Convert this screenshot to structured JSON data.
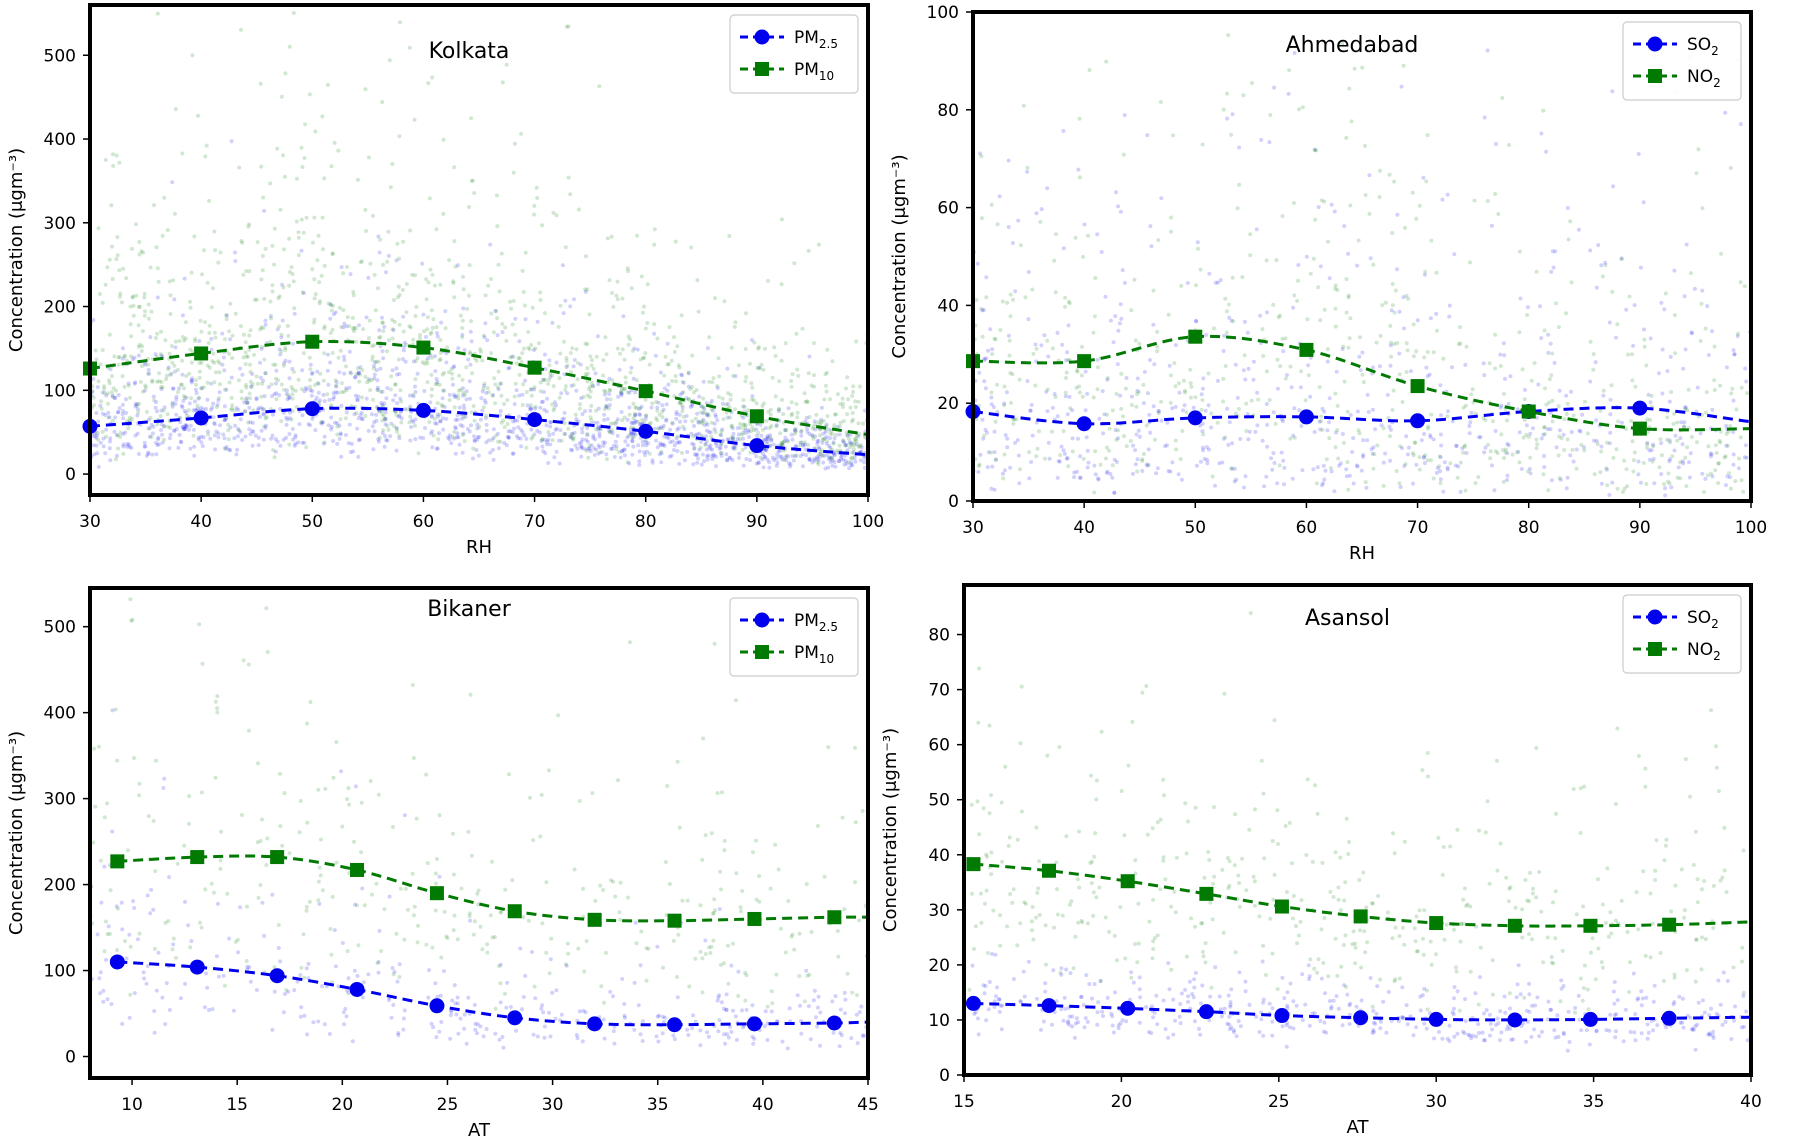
{
  "colors": {
    "so2_pm25": "#0000ee",
    "no2_pm10": "#007a00"
  },
  "chart_data": [
    {
      "type": "scatter",
      "title": "Kolkata",
      "xlabel": "RH",
      "ylabel": "Concentration (μgm⁻³)",
      "xlim": [
        30,
        100
      ],
      "ylim": [
        -25,
        560
      ],
      "xticks": [
        30,
        40,
        50,
        60,
        70,
        80,
        90,
        100
      ],
      "yticks": [
        0,
        100,
        200,
        300,
        400,
        500
      ],
      "legend_position": "top-right",
      "series": [
        {
          "name": "PM",
          "subscript": "2.5",
          "marker": "circle",
          "x": [
            30,
            40,
            50,
            60,
            70,
            80,
            90,
            100
          ],
          "y": [
            57,
            67,
            78,
            76,
            65,
            51,
            34,
            23
          ]
        },
        {
          "name": "PM",
          "subscript": "10",
          "marker": "square",
          "x": [
            30,
            40,
            50,
            60,
            70,
            80,
            90,
            100
          ],
          "y": [
            126,
            144,
            158,
            151,
            127,
            99,
            69,
            47
          ]
        }
      ]
    },
    {
      "type": "scatter",
      "title": "Ahmedabad",
      "xlabel": "RH",
      "ylabel": "Concentration (μgm⁻³)",
      "xlim": [
        30,
        100
      ],
      "ylim": [
        0,
        100
      ],
      "xticks": [
        30,
        40,
        50,
        60,
        70,
        80,
        90,
        100
      ],
      "yticks": [
        0,
        20,
        40,
        60,
        80,
        100
      ],
      "legend_position": "top-right",
      "series": [
        {
          "name": "SO",
          "subscript": "2",
          "marker": "circle",
          "x": [
            30,
            40,
            50,
            60,
            70,
            80,
            90,
            100
          ],
          "y": [
            18.3,
            15.8,
            17,
            17.2,
            16.4,
            18.3,
            19,
            16.2
          ]
        },
        {
          "name": "NO",
          "subscript": "2",
          "marker": "square",
          "x": [
            30,
            40,
            50,
            60,
            70,
            80,
            90,
            100
          ],
          "y": [
            28.6,
            28.6,
            33.6,
            30.9,
            23.5,
            18.3,
            14.8,
            14.8
          ]
        }
      ]
    },
    {
      "type": "scatter",
      "title": "Bikaner",
      "xlabel": "AT",
      "ylabel": "Concentration (μgm⁻³)",
      "xlim": [
        8,
        45
      ],
      "ylim": [
        -25,
        545
      ],
      "xticks": [
        10,
        15,
        20,
        25,
        30,
        35,
        40,
        45
      ],
      "yticks": [
        0,
        100,
        200,
        300,
        400,
        500
      ],
      "legend_position": "top-right",
      "series": [
        {
          "name": "PM",
          "subscript": "2.5",
          "marker": "circle",
          "x": [
            9.3,
            13.1,
            16.9,
            20.7,
            24.5,
            28.2,
            32,
            35.8,
            39.6,
            43.4,
            45
          ],
          "y": [
            110,
            104,
            94,
            78,
            59,
            45,
            38,
            37,
            38,
            39,
            40
          ]
        },
        {
          "name": "PM",
          "subscript": "10",
          "marker": "square",
          "x": [
            9.3,
            13.1,
            16.9,
            20.7,
            24.5,
            28.2,
            32,
            35.8,
            39.6,
            43.4,
            45
          ],
          "y": [
            227,
            232,
            232,
            217,
            190,
            169,
            159,
            158,
            160,
            162,
            162
          ]
        }
      ]
    },
    {
      "type": "scatter",
      "title": "Asansol",
      "xlabel": "AT",
      "ylabel": "Concentration (μgm⁻³)",
      "xlim": [
        15,
        40
      ],
      "ylim": [
        0,
        89
      ],
      "xticks": [
        15,
        20,
        25,
        30,
        35,
        40
      ],
      "yticks": [
        0,
        10,
        20,
        30,
        40,
        50,
        60,
        70,
        80
      ],
      "legend_position": "top-right",
      "series": [
        {
          "name": "SO",
          "subscript": "2",
          "marker": "circle",
          "x": [
            15.3,
            17.7,
            20.2,
            22.7,
            25.1,
            27.6,
            30,
            32.5,
            34.9,
            37.4,
            40
          ],
          "y": [
            13,
            12.6,
            12.1,
            11.5,
            10.8,
            10.4,
            10.1,
            10,
            10.1,
            10.3,
            10.5
          ]
        },
        {
          "name": "NO",
          "subscript": "2",
          "marker": "square",
          "x": [
            15.3,
            17.7,
            20.2,
            22.7,
            25.1,
            27.6,
            30,
            32.5,
            34.9,
            37.4,
            40
          ],
          "y": [
            38.3,
            37.1,
            35.2,
            32.9,
            30.6,
            28.8,
            27.6,
            27.1,
            27.1,
            27.3,
            27.8
          ]
        }
      ]
    }
  ]
}
